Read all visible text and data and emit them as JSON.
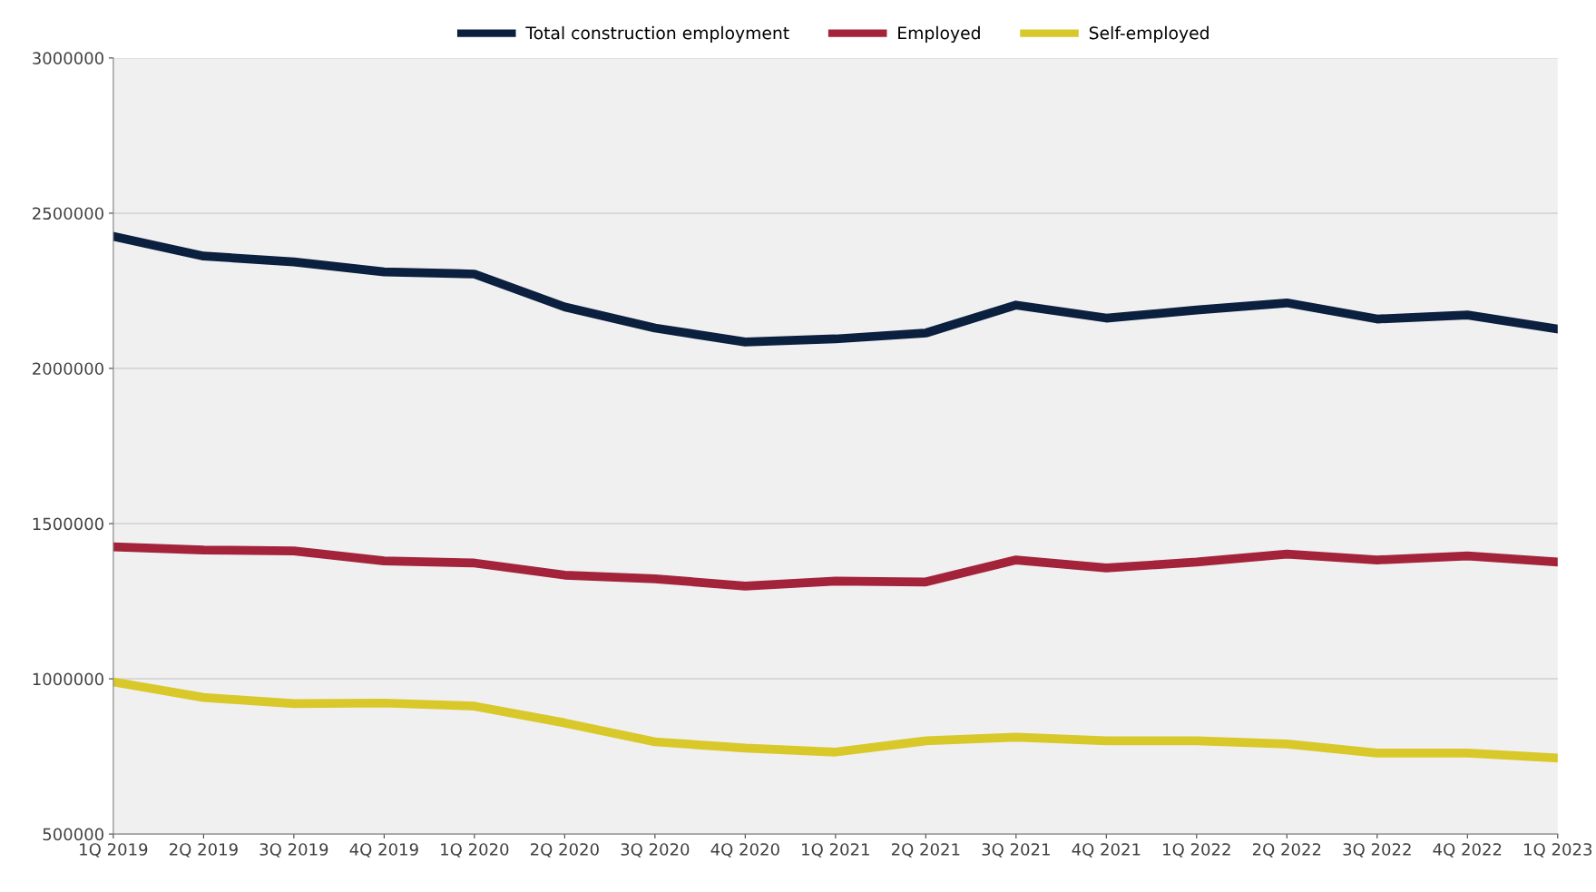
{
  "chart_data": {
    "type": "line",
    "categories": [
      "1Q 2019",
      "2Q 2019",
      "3Q 2019",
      "4Q 2019",
      "1Q 2020",
      "2Q 2020",
      "3Q 2020",
      "4Q 2020",
      "1Q 2021",
      "2Q 2021",
      "3Q 2021",
      "4Q 2021",
      "1Q 2022",
      "2Q 2022",
      "3Q 2022",
      "4Q 2022",
      "1Q 2023"
    ],
    "series": [
      {
        "name": "Total construction employment",
        "color": "#0b1f3f",
        "values": [
          2425000,
          2362000,
          2343000,
          2311000,
          2304000,
          2198000,
          2130000,
          2085000,
          2095000,
          2114000,
          2204000,
          2162000,
          2188000,
          2211000,
          2159000,
          2172000,
          2127000
        ]
      },
      {
        "name": "Employed",
        "color": "#a3233a",
        "values": [
          1425000,
          1415000,
          1412000,
          1380000,
          1373000,
          1334000,
          1322000,
          1299000,
          1315000,
          1312000,
          1383000,
          1357000,
          1376000,
          1402000,
          1383000,
          1396000,
          1376000
        ]
      },
      {
        "name": "Self-employed",
        "color": "#d9c82a",
        "values": [
          990000,
          940000,
          920000,
          922000,
          912000,
          858000,
          797000,
          777000,
          764000,
          800000,
          812000,
          800000,
          800000,
          790000,
          761000,
          761000,
          745000
        ]
      }
    ],
    "ylim": [
      500000,
      3000000
    ],
    "yticks": [
      500000,
      1000000,
      1500000,
      2000000,
      2500000,
      3000000
    ],
    "grid": "y",
    "legend": "top",
    "marker": "none",
    "line_style": "solid"
  }
}
